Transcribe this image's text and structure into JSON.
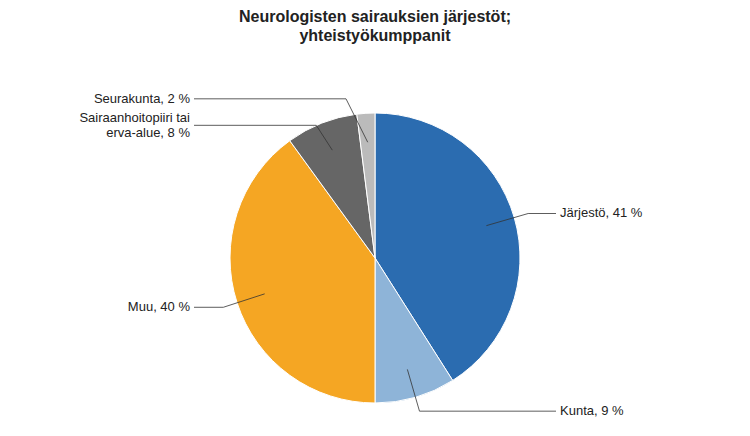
{
  "chart_data": {
    "type": "pie",
    "title": "Neurologisten sairauksien järjestöt;\nyhteistyökumppanit",
    "categories": [
      "Järjestö, 41 %",
      "Kunta, 9 %",
      "Muu, 40 %",
      "Sairaanhoitopiiri tai\nerva-alue, 8 %",
      "Seurakunta, 2 %"
    ],
    "values": [
      41,
      9,
      40,
      8,
      2
    ],
    "colors": [
      "#2B6CB0",
      "#8EB4D8",
      "#F5A623",
      "#666666",
      "#BBBBBB"
    ]
  }
}
